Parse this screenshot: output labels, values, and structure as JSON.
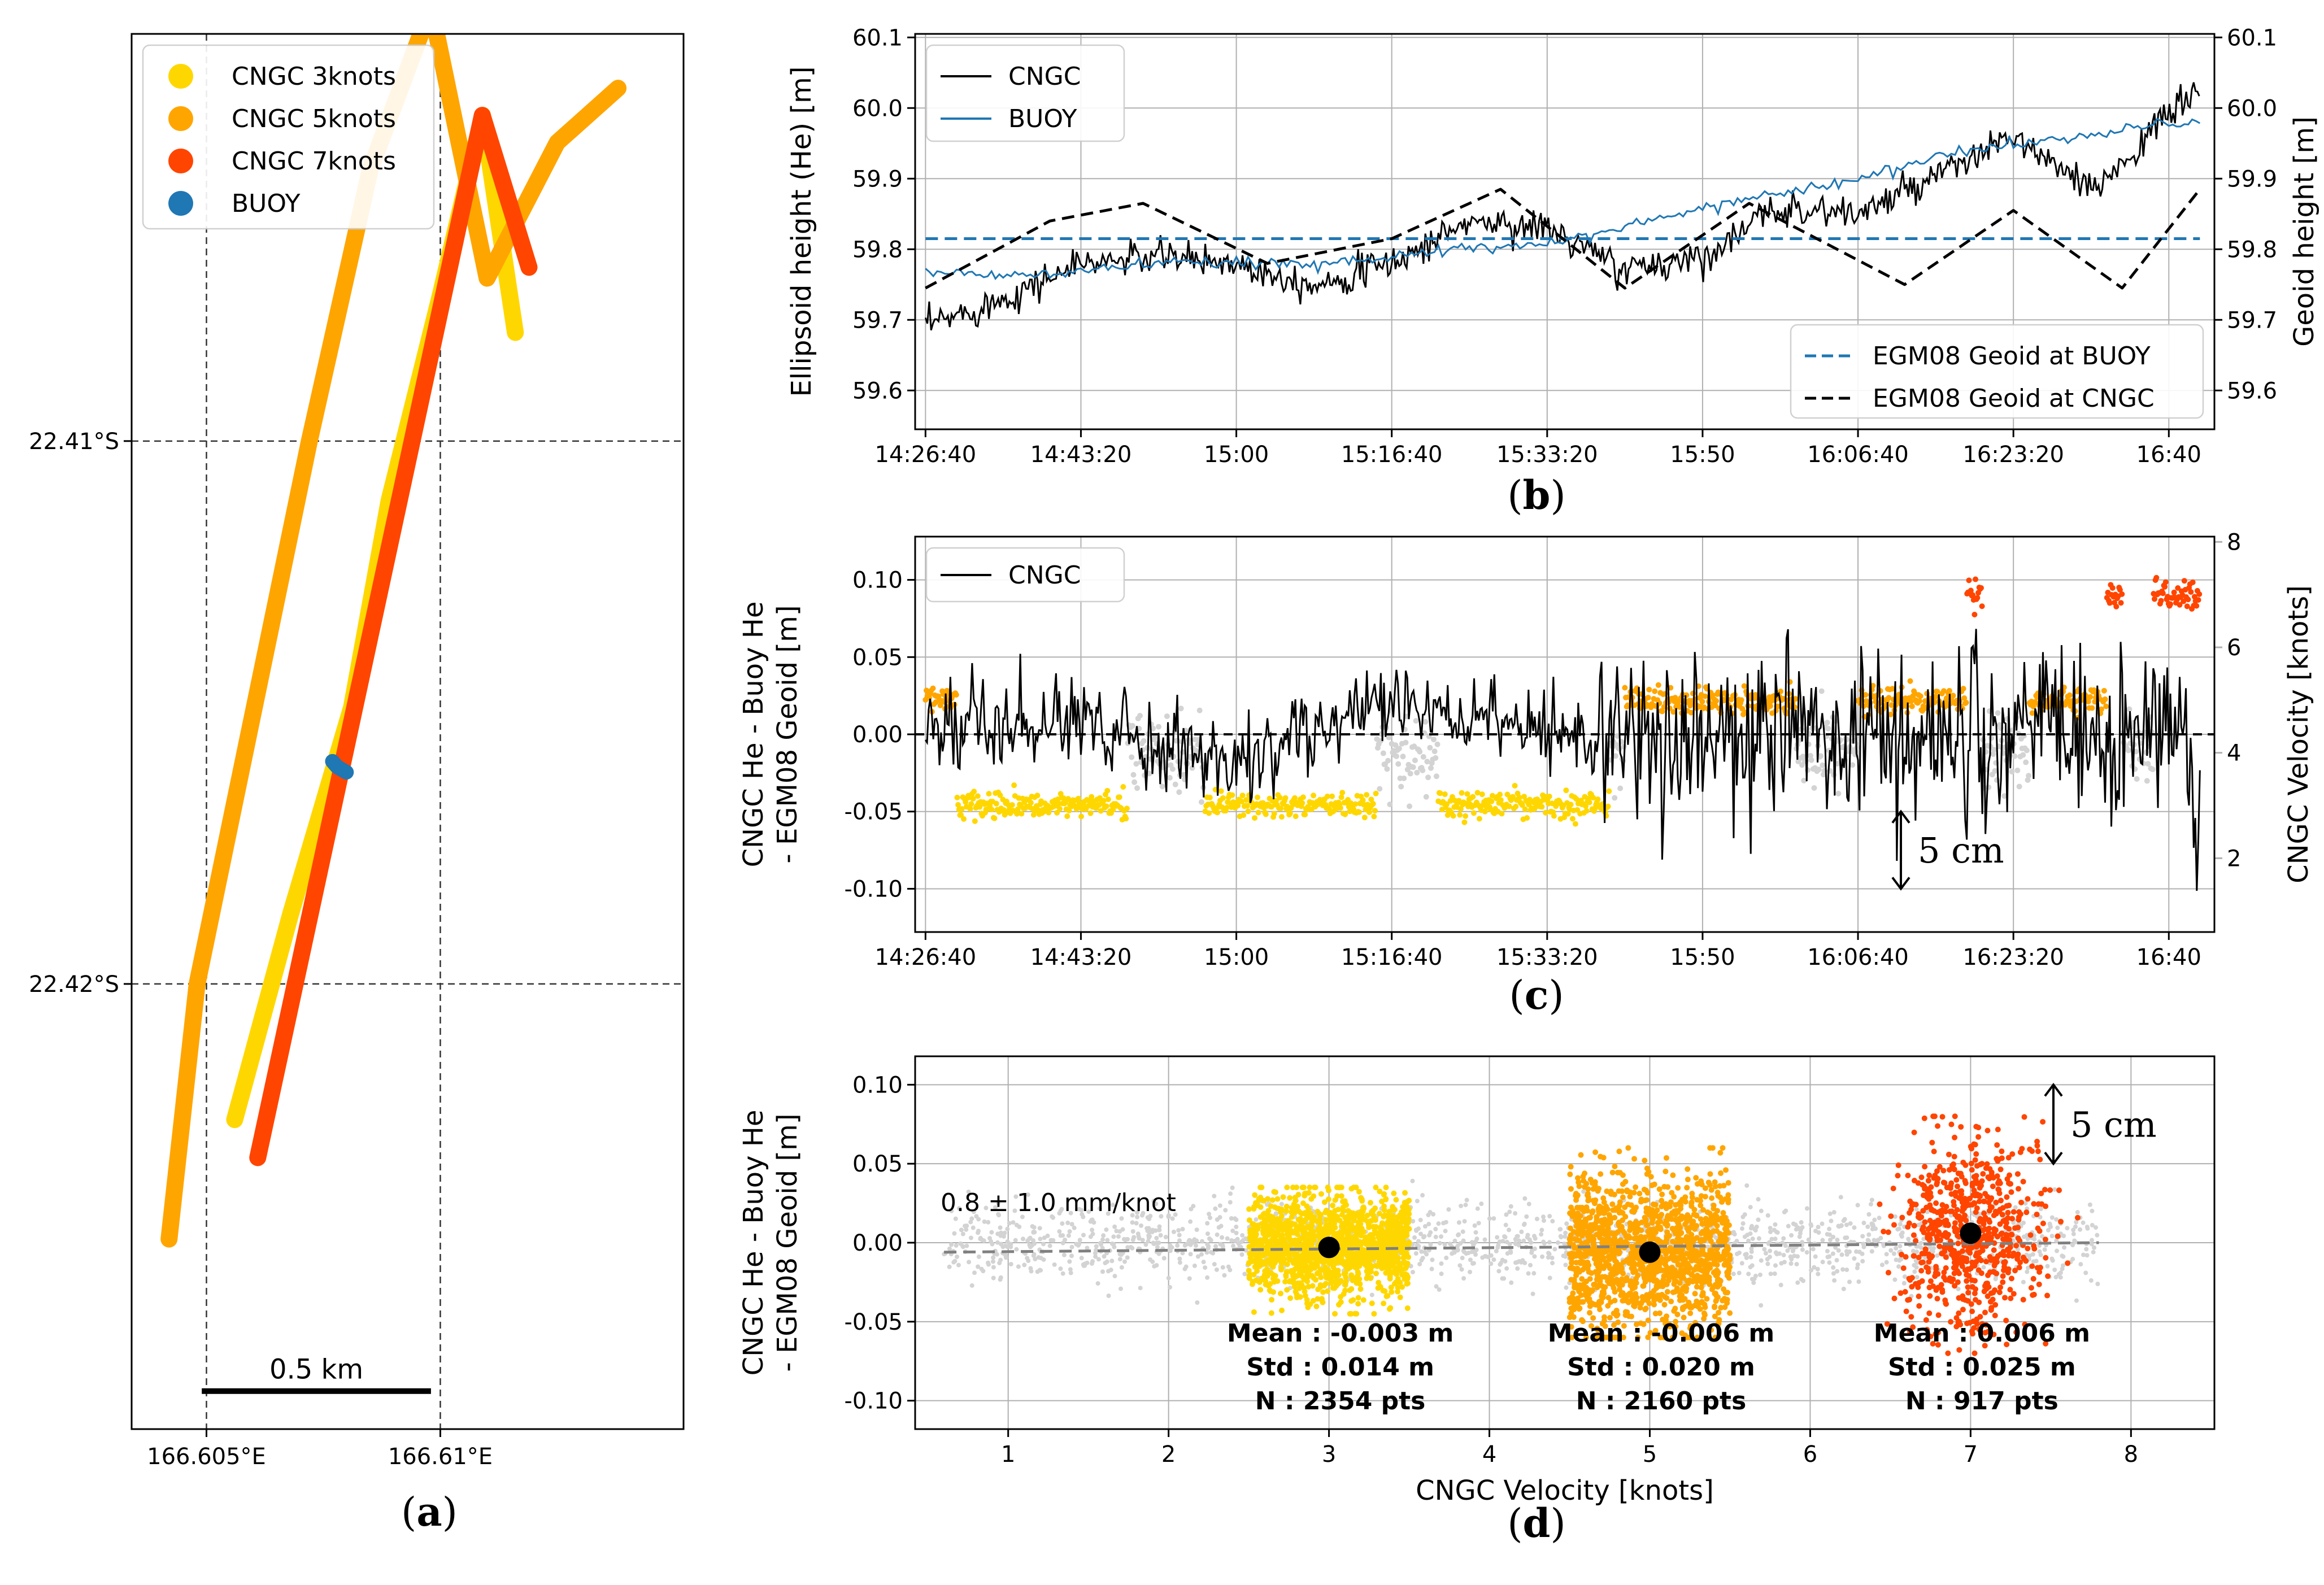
{
  "captions": {
    "a": "a",
    "b": "b",
    "c": "c",
    "d": "d"
  },
  "chart_data": [
    {
      "id": "a",
      "type": "scatter",
      "title": "",
      "xlabel": "",
      "ylabel": "",
      "xlim": [
        166.6034,
        166.6152
      ],
      "ylim": [
        -22.4282,
        -22.4025
      ],
      "x_ticks": [
        {
          "value": 166.605,
          "label": "166.605°E"
        },
        {
          "value": 166.61,
          "label": "166.61°E"
        }
      ],
      "y_ticks": [
        {
          "value": -22.41,
          "label": "22.41°S"
        },
        {
          "value": -22.42,
          "label": "22.42°S"
        }
      ],
      "grid": "dashed at ticks",
      "legend": {
        "placement": "top-left",
        "entries": [
          {
            "name": "CNGC 3knots",
            "color": "#ffd700"
          },
          {
            "name": "CNGC 5knots",
            "color": "#ffa500"
          },
          {
            "name": "CNGC 7knots",
            "color": "#ff4500"
          },
          {
            "name": "BUOY",
            "color": "#1f77b4"
          }
        ]
      },
      "scalebar": {
        "label": "0.5 km",
        "from": [
          166.6049,
          -22.4275
        ],
        "to": [
          166.6098,
          -22.4275
        ]
      },
      "series": [
        {
          "name": "CNGC 3knots",
          "color": "#ffd700",
          "x": [
            166.6057,
            166.6069,
            166.6082,
            166.609,
            166.6101,
            166.611,
            166.6117
          ],
          "y": [
            -22.4225,
            -22.4187,
            -22.4149,
            -22.4111,
            -22.4073,
            -22.404,
            -22.408
          ]
        },
        {
          "name": "CNGC 5knots",
          "color": "#ffa500",
          "x": [
            166.6042,
            166.6048,
            166.606,
            166.6072,
            166.6085,
            166.6098,
            166.611,
            166.6125,
            166.6138
          ],
          "y": [
            -22.4247,
            -22.42,
            -22.415,
            -22.41,
            -22.405,
            -22.402,
            -22.407,
            -22.4045,
            -22.4035
          ]
        },
        {
          "name": "CNGC 7knots",
          "color": "#ff4500",
          "x": [
            166.606,
            166.6072,
            166.6084,
            166.6096,
            166.6108,
            166.6118
          ],
          "y": [
            -22.4232,
            -22.4184,
            -22.4136,
            -22.4088,
            -22.404,
            -22.4068
          ]
        },
        {
          "name": "BUOY",
          "color": "#1f77b4",
          "x": [
            166.6075,
            166.6076,
            166.6078
          ],
          "y": [
            -22.4159,
            -22.416,
            -22.4161
          ]
        }
      ]
    },
    {
      "id": "b",
      "type": "line",
      "title": "",
      "xlabel": "",
      "ylabel": "Ellipsoid height (He) [m]",
      "ylabel_right": "Geoid height [m]",
      "xlim": [
        -500,
        62200
      ],
      "ylim": [
        59.545,
        60.105
      ],
      "x_ticks": [
        {
          "value": 0,
          "label": "14:26:40"
        },
        {
          "value": 1000,
          "label": "14:43:20"
        },
        {
          "value": 2000,
          "label": "15:00"
        },
        {
          "value": 3000,
          "label": "15:16:40"
        },
        {
          "value": 4000,
          "label": "15:33:20"
        },
        {
          "value": 5000,
          "label": "15:50"
        },
        {
          "value": 6000,
          "label": "16:06:40"
        },
        {
          "value": 7000,
          "label": "16:23:20"
        },
        {
          "value": 8000,
          "label": "16:40"
        }
      ],
      "y_ticks": [
        "59.6",
        "59.7",
        "59.8",
        "59.9",
        "60.0",
        "60.1"
      ],
      "grid": "on",
      "legend_top": {
        "placement": "top-left",
        "entries": [
          {
            "name": "CNGC",
            "color": "#000000"
          },
          {
            "name": "BUOY",
            "color": "#1f77b4"
          }
        ]
      },
      "legend_bottom": {
        "placement": "bottom-right",
        "entries": [
          {
            "name": "EGM08 Geoid at BUOY",
            "color": "#1f77b4"
          },
          {
            "name": "EGM08 Geoid at CNGC",
            "color": "#000000"
          }
        ]
      },
      "series": [
        {
          "name": "CNGC",
          "color": "#000000",
          "x": [
            0,
            500,
            1000,
            1500,
            2000,
            2500,
            3000,
            3500,
            4000,
            4500,
            5000,
            5500,
            6000,
            6500,
            7000,
            7500,
            8000,
            8200
          ],
          "y": [
            59.69,
            59.73,
            59.78,
            59.79,
            59.78,
            59.75,
            59.78,
            59.84,
            59.83,
            59.77,
            59.79,
            59.86,
            59.85,
            59.9,
            59.96,
            59.88,
            59.99,
            60.03
          ]
        },
        {
          "name": "BUOY",
          "color": "#1f77b4",
          "x": [
            0,
            500,
            1000,
            1500,
            2000,
            2500,
            3000,
            3500,
            4000,
            4500,
            5000,
            5500,
            6000,
            6500,
            7000,
            7500,
            8000,
            8200
          ],
          "y": [
            59.77,
            59.76,
            59.77,
            59.78,
            59.78,
            59.78,
            59.79,
            59.8,
            59.81,
            59.83,
            59.86,
            59.88,
            59.9,
            59.93,
            59.95,
            59.96,
            59.98,
            59.98
          ]
        },
        {
          "name": "EGM08 Geoid at BUOY",
          "color": "#1f77b4",
          "x": [
            0,
            8200
          ],
          "y": [
            59.815,
            59.815
          ]
        },
        {
          "name": "EGM08 Geoid at CNGC",
          "color": "#000000",
          "x": [
            0,
            800,
            1400,
            2200,
            3000,
            3700,
            4500,
            5300,
            6300,
            7000,
            7700,
            8200
          ],
          "y": [
            59.745,
            59.84,
            59.865,
            59.78,
            59.815,
            59.885,
            59.745,
            59.865,
            59.75,
            59.855,
            59.745,
            59.885
          ]
        }
      ]
    },
    {
      "id": "c",
      "type": "line",
      "title": "",
      "xlabel": "",
      "ylabel": "CNGC He - Buoy He\n- EGM08 Geoid [m]",
      "ylabel_right": "CNGC Velocity [knots]",
      "xlim": [
        -500,
        62200
      ],
      "ylim": [
        -0.128,
        0.128
      ],
      "ylim_right": [
        0.6,
        8.1
      ],
      "x_ticks": [
        {
          "value": 0,
          "label": "14:26:40"
        },
        {
          "value": 1000,
          "label": "14:43:20"
        },
        {
          "value": 2000,
          "label": "15:00"
        },
        {
          "value": 3000,
          "label": "15:16:40"
        },
        {
          "value": 4000,
          "label": "15:33:20"
        },
        {
          "value": 5000,
          "label": "15:50"
        },
        {
          "value": 6000,
          "label": "16:06:40"
        },
        {
          "value": 7000,
          "label": "16:23:20"
        },
        {
          "value": 8000,
          "label": "16:40"
        }
      ],
      "y_ticks": [
        "-0.10",
        "-0.05",
        "0.00",
        "0.05",
        "0.10"
      ],
      "y_ticks_right": [
        "2",
        "4",
        "6",
        "8"
      ],
      "grid": "on",
      "legend": {
        "placement": "top-left",
        "entries": [
          {
            "name": "CNGC",
            "color": "#000000"
          }
        ]
      },
      "annotation": "5 cm",
      "series": [
        {
          "name": "CNGC",
          "color": "#000000",
          "x": [
            0,
            1000,
            2000,
            3000,
            4000,
            5000,
            6000,
            7000,
            8000,
            8200
          ],
          "y": [
            0.0,
            0.01,
            -0.02,
            0.02,
            0.0,
            0.0,
            0.0,
            0.0,
            0.0,
            -0.03
          ]
        }
      ],
      "velocity_segments": [
        {
          "color": "#ffd700",
          "x": [
            200,
            1300
          ],
          "knots": 3
        },
        {
          "color": "#ffd700",
          "x": [
            1800,
            2900
          ],
          "knots": 3
        },
        {
          "color": "#ffd700",
          "x": [
            3300,
            4400
          ],
          "knots": 3
        },
        {
          "color": "#ffa500",
          "x": [
            0,
            200
          ],
          "knots": 5
        },
        {
          "color": "#ffa500",
          "x": [
            4500,
            5600
          ],
          "knots": 5
        },
        {
          "color": "#ffa500",
          "x": [
            6000,
            6700
          ],
          "knots": 5
        },
        {
          "color": "#ffa500",
          "x": [
            7100,
            7600
          ],
          "knots": 5
        },
        {
          "color": "#ff4500",
          "x": [
            6300,
            6800
          ],
          "knots": 7
        },
        {
          "color": "#ff4500",
          "x": [
            7200,
            7700
          ],
          "knots": 7
        },
        {
          "color": "#ff4500",
          "x": [
            7900,
            8300
          ],
          "knots": 7
        }
      ]
    },
    {
      "id": "d",
      "type": "scatter",
      "title": "",
      "xlabel": "CNGC Velocity [knots]",
      "ylabel": "CNGC He - Buoy He\n- EGM08 Geoid [m]",
      "xlim": [
        0.42,
        8.52
      ],
      "ylim": [
        -0.118,
        0.118
      ],
      "x_ticks": [
        "1",
        "2",
        "3",
        "4",
        "5",
        "6",
        "7",
        "8"
      ],
      "y_ticks": [
        "-0.10",
        "-0.05",
        "0.00",
        "0.05",
        "0.10"
      ],
      "grid": "on",
      "fit_label": "0.8 ± 1.0 mm/knot",
      "annotation": "5 cm",
      "fit_line": {
        "x": [
          0.6,
          7.8
        ],
        "y": [
          -0.006,
          0.0
        ]
      },
      "groups": [
        {
          "name": "3 knots",
          "color": "#ffd700",
          "x": [
            2.5,
            3.5
          ],
          "y": [
            -0.045,
            0.035
          ],
          "mean_x": 3,
          "mean": -0.003,
          "stats": [
            "Mean : -0.003 m",
            "Std : 0.014 m",
            "N : 2354 pts"
          ]
        },
        {
          "name": "5 knots",
          "color": "#ffa500",
          "x": [
            4.5,
            5.5
          ],
          "y": [
            -0.06,
            0.06
          ],
          "mean_x": 5,
          "mean": -0.006,
          "stats": [
            "Mean : -0.006 m",
            "Std : 0.020 m",
            "N : 2160 pts"
          ]
        },
        {
          "name": "7 knots",
          "color": "#ff4500",
          "x": [
            6.5,
            7.5
          ],
          "y": [
            -0.07,
            0.08
          ],
          "mean_x": 7,
          "mean": 0.006,
          "stats": [
            "Mean : 0.006 m",
            "Std : 0.025 m",
            "N : 917 pts"
          ]
        }
      ]
    }
  ]
}
